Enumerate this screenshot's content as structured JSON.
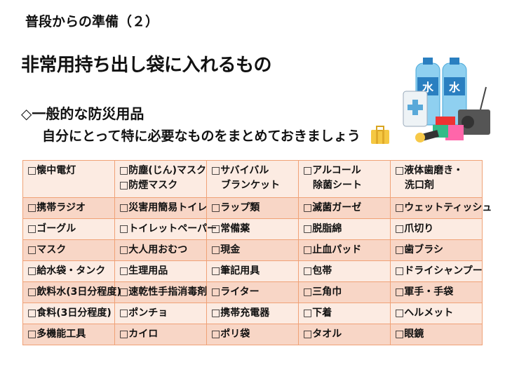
{
  "slide": {
    "title": "普段からの準備（２）",
    "heading": "非常用持ち出し袋に入れるもの",
    "subheading": "◇一般的な防災用品",
    "note": "自分にとって特に必要なものをまとめておきましょう"
  },
  "illustration": {
    "bottle_label": "水"
  },
  "table": {
    "rows": [
      [
        "□懐中電灯",
        "□防塵(じん)マスク\n□防煙マスク",
        "□サバイバル\n　ブランケット",
        "□アルコール\n　除菌シート",
        "□液体歯磨き・\n　洗口剤"
      ],
      [
        "□携帯ラジオ",
        "□災害用簡易トイレ",
        "□ラップ類",
        "□滅菌ガーゼ",
        "□ウェットティッシュ"
      ],
      [
        "□ゴーグル",
        "□トイレットペーパー",
        "□常備薬",
        "□脱脂綿",
        "□爪切り"
      ],
      [
        "□マスク",
        "□大人用おむつ",
        "□現金",
        "□止血パッド",
        "□歯ブラシ"
      ],
      [
        "□給水袋・タンク",
        "□生理用品",
        "□筆記用具",
        "□包帯",
        "□ドライシャンプー"
      ],
      [
        "□飲料水(3日分程度)",
        "□速乾性手指消毒剤",
        "□ライター",
        "□三角巾",
        "□軍手・手袋"
      ],
      [
        "□食料(3日分程度)",
        "□ポンチョ",
        "□携帯充電器",
        "□下着",
        "□ヘルメット"
      ],
      [
        "□多機能工具",
        "□カイロ",
        "□ポリ袋",
        "□タオル",
        "□眼鏡"
      ]
    ]
  },
  "colors": {
    "border": "#f0a277",
    "row_light": "#fcebe2",
    "row_dark": "#f8d6c6"
  }
}
